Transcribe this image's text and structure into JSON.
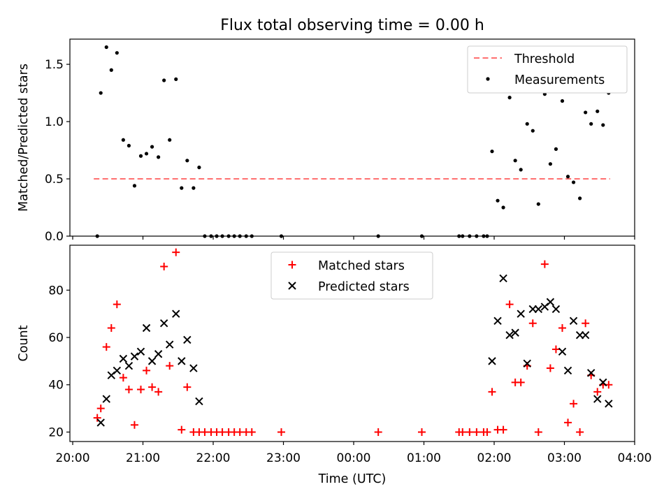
{
  "figure_title": "Flux total observing time = 0.00 h",
  "xlabel": "Time (UTC)",
  "x_ticks": [
    "20:00",
    "21:00",
    "22:00",
    "23:00",
    "00:00",
    "01:00",
    "02:00",
    "03:00",
    "04:00"
  ],
  "colors": {
    "threshold": "#ff7070",
    "measurements": "#000000",
    "matched": "#ff0000",
    "predicted": "#000000"
  },
  "chart_data": [
    {
      "type": "scatter",
      "ylabel": "Matched/Predicted stars",
      "ylim": [
        0,
        1.72
      ],
      "yticks": [
        "0.0",
        "0.5",
        "1.0",
        "1.5"
      ],
      "xlim_hours": [
        -0.04,
        8.0
      ],
      "legend_placement": "top-right",
      "threshold": {
        "name": "Threshold",
        "value": 0.5,
        "x_range": [
          0.3,
          7.65
        ]
      },
      "series": [
        {
          "name": "Measurements",
          "points": [
            [
              0.35,
              0.0
            ],
            [
              0.4,
              1.25
            ],
            [
              0.48,
              1.65
            ],
            [
              0.55,
              1.45
            ],
            [
              0.63,
              1.6
            ],
            [
              0.72,
              0.84
            ],
            [
              0.8,
              0.79
            ],
            [
              0.88,
              0.44
            ],
            [
              0.97,
              0.7
            ],
            [
              1.05,
              0.72
            ],
            [
              1.13,
              0.78
            ],
            [
              1.22,
              0.69
            ],
            [
              1.3,
              1.36
            ],
            [
              1.38,
              0.84
            ],
            [
              1.47,
              1.37
            ],
            [
              1.55,
              0.42
            ],
            [
              1.63,
              0.66
            ],
            [
              1.72,
              0.42
            ],
            [
              1.8,
              0.6
            ],
            [
              1.88,
              0.0
            ],
            [
              1.97,
              0.0
            ],
            [
              2.05,
              0.0
            ],
            [
              2.13,
              0.0
            ],
            [
              2.22,
              0.0
            ],
            [
              2.3,
              0.0
            ],
            [
              2.38,
              0.0
            ],
            [
              2.47,
              0.0
            ],
            [
              2.55,
              0.0
            ],
            [
              2.97,
              0.0
            ],
            [
              4.35,
              0.0
            ],
            [
              4.97,
              0.0
            ],
            [
              5.5,
              0.0
            ],
            [
              5.55,
              0.0
            ],
            [
              5.65,
              0.0
            ],
            [
              5.75,
              0.0
            ],
            [
              5.85,
              0.0
            ],
            [
              5.9,
              0.0
            ],
            [
              5.97,
              0.74
            ],
            [
              6.05,
              0.31
            ],
            [
              6.13,
              0.25
            ],
            [
              6.22,
              1.21
            ],
            [
              6.3,
              0.66
            ],
            [
              6.38,
              0.58
            ],
            [
              6.47,
              0.98
            ],
            [
              6.55,
              0.92
            ],
            [
              6.63,
              0.28
            ],
            [
              6.72,
              1.24
            ],
            [
              6.8,
              0.63
            ],
            [
              6.88,
              0.76
            ],
            [
              6.97,
              1.18
            ],
            [
              7.05,
              0.52
            ],
            [
              7.13,
              0.47
            ],
            [
              7.22,
              0.33
            ],
            [
              7.3,
              1.08
            ],
            [
              7.38,
              0.98
            ],
            [
              7.47,
              1.09
            ],
            [
              7.55,
              0.97
            ],
            [
              7.63,
              1.25
            ]
          ]
        }
      ]
    },
    {
      "type": "scatter",
      "ylabel": "Count",
      "ylim": [
        16,
        99
      ],
      "yticks": [
        "20",
        "40",
        "60",
        "80"
      ],
      "xlim_hours": [
        -0.04,
        8.0
      ],
      "legend_placement": "top-center",
      "series": [
        {
          "name": "Matched stars",
          "marker": "+",
          "points": [
            [
              0.35,
              26
            ],
            [
              0.4,
              30
            ],
            [
              0.48,
              56
            ],
            [
              0.55,
              64
            ],
            [
              0.63,
              74
            ],
            [
              0.72,
              43
            ],
            [
              0.8,
              38
            ],
            [
              0.88,
              23
            ],
            [
              0.97,
              38
            ],
            [
              1.05,
              46
            ],
            [
              1.13,
              39
            ],
            [
              1.22,
              37
            ],
            [
              1.3,
              90
            ],
            [
              1.38,
              48
            ],
            [
              1.47,
              96
            ],
            [
              1.55,
              21
            ],
            [
              1.63,
              39
            ],
            [
              1.72,
              20
            ],
            [
              1.8,
              20
            ],
            [
              1.88,
              20
            ],
            [
              1.97,
              20
            ],
            [
              2.05,
              20
            ],
            [
              2.13,
              20
            ],
            [
              2.22,
              20
            ],
            [
              2.3,
              20
            ],
            [
              2.38,
              20
            ],
            [
              2.47,
              20
            ],
            [
              2.55,
              20
            ],
            [
              2.97,
              20
            ],
            [
              4.35,
              20
            ],
            [
              4.97,
              20
            ],
            [
              5.5,
              20
            ],
            [
              5.55,
              20
            ],
            [
              5.65,
              20
            ],
            [
              5.75,
              20
            ],
            [
              5.85,
              20
            ],
            [
              5.9,
              20
            ],
            [
              5.97,
              37
            ],
            [
              6.05,
              21
            ],
            [
              6.13,
              21
            ],
            [
              6.22,
              74
            ],
            [
              6.3,
              41
            ],
            [
              6.38,
              41
            ],
            [
              6.47,
              48
            ],
            [
              6.55,
              66
            ],
            [
              6.63,
              20
            ],
            [
              6.72,
              91
            ],
            [
              6.8,
              47
            ],
            [
              6.88,
              55
            ],
            [
              6.97,
              64
            ],
            [
              7.05,
              24
            ],
            [
              7.13,
              32
            ],
            [
              7.22,
              20
            ],
            [
              7.3,
              66
            ],
            [
              7.38,
              44
            ],
            [
              7.47,
              37
            ],
            [
              7.55,
              40
            ],
            [
              7.63,
              40
            ]
          ]
        },
        {
          "name": "Predicted stars",
          "marker": "x",
          "points": [
            [
              0.4,
              24
            ],
            [
              0.48,
              34
            ],
            [
              0.55,
              44
            ],
            [
              0.63,
              46
            ],
            [
              0.72,
              51
            ],
            [
              0.8,
              48
            ],
            [
              0.88,
              52
            ],
            [
              0.97,
              54
            ],
            [
              1.05,
              64
            ],
            [
              1.13,
              50
            ],
            [
              1.22,
              53
            ],
            [
              1.3,
              66
            ],
            [
              1.38,
              57
            ],
            [
              1.47,
              70
            ],
            [
              1.55,
              50
            ],
            [
              1.63,
              59
            ],
            [
              1.72,
              47
            ],
            [
              1.8,
              33
            ],
            [
              5.97,
              50
            ],
            [
              6.05,
              67
            ],
            [
              6.13,
              85
            ],
            [
              6.22,
              61
            ],
            [
              6.3,
              62
            ],
            [
              6.38,
              70
            ],
            [
              6.47,
              49
            ],
            [
              6.55,
              72
            ],
            [
              6.63,
              72
            ],
            [
              6.72,
              73
            ],
            [
              6.8,
              75
            ],
            [
              6.88,
              72
            ],
            [
              6.97,
              54
            ],
            [
              7.05,
              46
            ],
            [
              7.13,
              67
            ],
            [
              7.22,
              61
            ],
            [
              7.3,
              61
            ],
            [
              7.38,
              45
            ],
            [
              7.47,
              34
            ],
            [
              7.55,
              41
            ],
            [
              7.63,
              32
            ]
          ]
        }
      ]
    }
  ]
}
